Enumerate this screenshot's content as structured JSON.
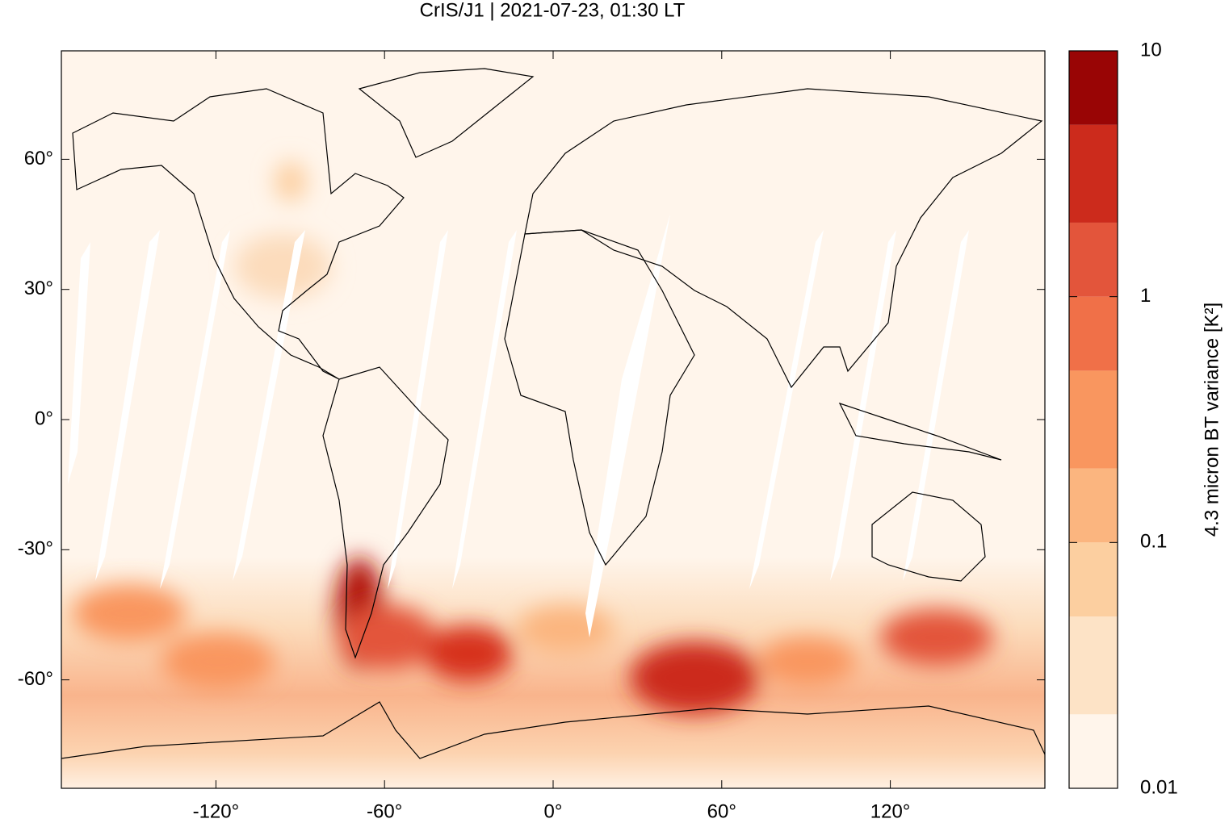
{
  "chart_data": {
    "type": "map",
    "title": "CrIS/J1 | 2021-07-23, 01:30 LT",
    "xlim": [
      -175,
      175
    ],
    "ylim": [
      -85,
      85
    ],
    "xticks": [
      {
        "value": -120,
        "label": "-120°"
      },
      {
        "value": -60,
        "label": "-60°"
      },
      {
        "value": 0,
        "label": "0°"
      },
      {
        "value": 60,
        "label": "60°"
      },
      {
        "value": 120,
        "label": "120°"
      }
    ],
    "yticks": [
      {
        "value": -60,
        "label": "-60°"
      },
      {
        "value": -30,
        "label": "-30°"
      },
      {
        "value": 0,
        "label": "0°"
      },
      {
        "value": 30,
        "label": "30°"
      },
      {
        "value": 60,
        "label": "60°"
      }
    ],
    "colorbar": {
      "label": "4.3 micron BT variance [K²]",
      "log_scale": true,
      "lim": [
        0.01,
        10
      ],
      "ticks": [
        0.01,
        0.1,
        1,
        10
      ],
      "levels": [
        0.01,
        0.02,
        0.05,
        0.1,
        0.2,
        0.5,
        1,
        2,
        5,
        10
      ],
      "colors": [
        "#fff5eb",
        "#fde3c6",
        "#fccfa0",
        "#fbb57f",
        "#f9965f",
        "#f07048",
        "#e3553b",
        "#cc2b1c",
        "#990505"
      ]
    }
  }
}
